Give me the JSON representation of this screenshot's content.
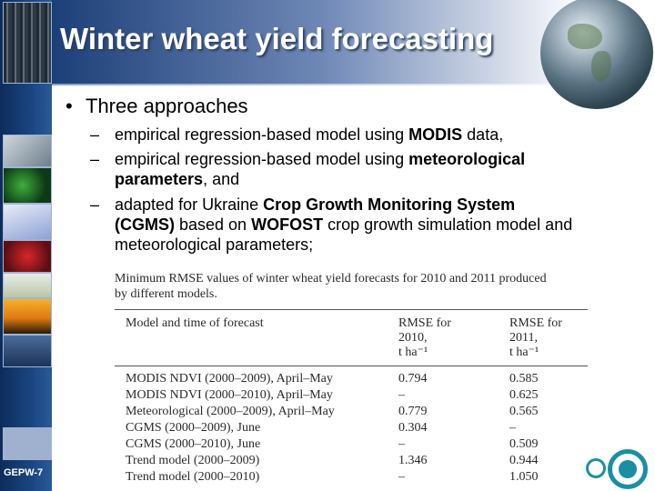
{
  "slide": {
    "title": "Winter wheat yield forecasting",
    "bullet": "Three approaches",
    "footer_label": "GEPW-7"
  },
  "subbullets": [
    {
      "dash": "–",
      "lines": [
        [
          "empirical regression-based model using ",
          "MODIS",
          " data,"
        ]
      ]
    },
    {
      "dash": "–",
      "lines": [
        [
          "empirical regression-based model using ",
          "meteorological",
          ""
        ],
        [
          "",
          "parameters",
          ", and"
        ]
      ]
    },
    {
      "dash": "–",
      "lines": [
        [
          "adapted for Ukraine ",
          "Crop Growth Monitoring System",
          ""
        ],
        [
          "",
          "(CGMS)",
          " based on "
        ],
        [
          "meteorological parameters;",
          "",
          ""
        ]
      ]
    }
  ],
  "table": {
    "caption_line1": "Minimum RMSE values of winter wheat yield forecasts for 2010 and 2011 produced",
    "caption_line2": "by different models.",
    "headers": {
      "model": "Model and time of forecast",
      "rmse2010_l1": "RMSE for",
      "rmse2010_l2": "2010,",
      "rmse2010_l3": "t ha⁻¹",
      "rmse2011_l1": "RMSE for",
      "rmse2011_l2": "2011,",
      "rmse2011_l3": "t ha⁻¹"
    },
    "rows": [
      {
        "model": "MODIS NDVI (2000–2009), April–May",
        "rmse2010": "0.794",
        "rmse2011": "0.585"
      },
      {
        "model": "MODIS NDVI (2000–2010), April–May",
        "rmse2010": "–",
        "rmse2011": "0.625"
      },
      {
        "model": "Meteorological (2000–2009), April–May",
        "rmse2010": "0.779",
        "rmse2011": "0.565"
      },
      {
        "model": "CGMS (2000–2009), June",
        "rmse2010": "0.304",
        "rmse2011": "–"
      },
      {
        "model": "CGMS (2000–2010), June",
        "rmse2010": "–",
        "rmse2011": "0.509"
      },
      {
        "model": "Trend model (2000–2009)",
        "rmse2010": "1.346",
        "rmse2011": "0.944"
      },
      {
        "model": "Trend model (2000–2010)",
        "rmse2010": "–",
        "rmse2011": "1.050"
      }
    ]
  },
  "colors": {
    "sidebar": "#1b4580",
    "header_dark": "#1c3f78",
    "logo_teal": "#1a8fa3"
  }
}
